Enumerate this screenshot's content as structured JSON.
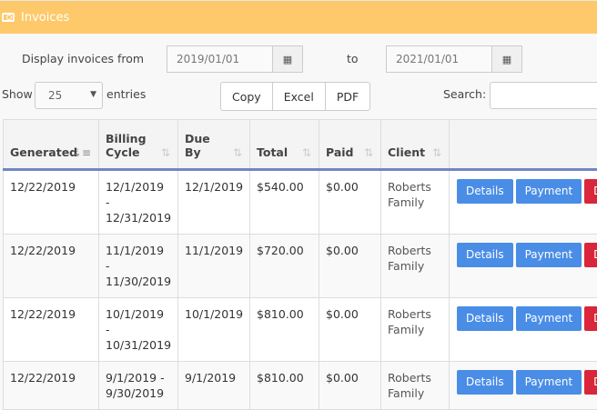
{
  "header": {
    "title": "Invoices",
    "icon": "money-bill-icon",
    "color": "#fec96a"
  },
  "filter": {
    "from_label": "Display invoices from",
    "from_value": "2019/01/01",
    "to_label": "to",
    "to_value": "2021/01/01"
  },
  "length": {
    "show_label": "Show",
    "value": "25",
    "entries_label": "entries"
  },
  "export": {
    "copy": "Copy",
    "excel": "Excel",
    "pdf": "PDF"
  },
  "search": {
    "label": "Search:",
    "value": ""
  },
  "table": {
    "columns": [
      "Generated",
      "Billing Cycle",
      "Due By",
      "Total",
      "Paid",
      "Client"
    ],
    "sorted_column": "Generated",
    "rows": [
      {
        "generated": "12/22/2019",
        "cycle": "12/1/2019 - 12/31/2019",
        "due": "12/1/2019",
        "total": "$540.00",
        "paid": "$0.00",
        "client": "Roberts Family"
      },
      {
        "generated": "12/22/2019",
        "cycle": "11/1/2019 - 11/30/2019",
        "due": "11/1/2019",
        "total": "$720.00",
        "paid": "$0.00",
        "client": "Roberts Family"
      },
      {
        "generated": "12/22/2019",
        "cycle": "10/1/2019 - 10/31/2019",
        "due": "10/1/2019",
        "total": "$810.00",
        "paid": "$0.00",
        "client": "Roberts Family"
      },
      {
        "generated": "12/22/2019",
        "cycle": "9/1/2019 - 9/30/2019",
        "due": "9/1/2019",
        "total": "$810.00",
        "paid": "$0.00",
        "client": "Roberts Family"
      }
    ],
    "actions": {
      "details": "Details",
      "payment": "Payment",
      "delete": "Delete"
    }
  }
}
